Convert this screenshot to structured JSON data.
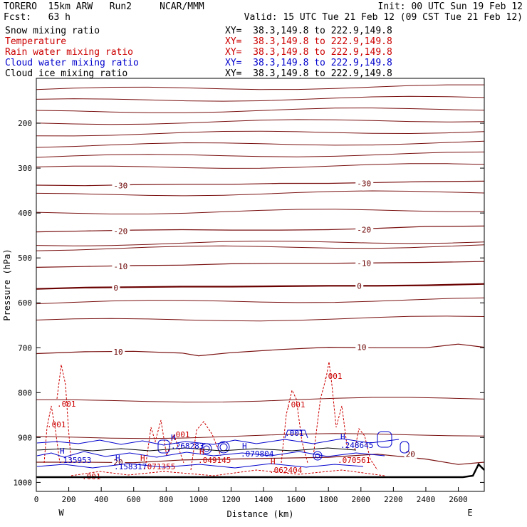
{
  "header": {
    "model": "TORERO  15km ARW   Run2     NCAR/MMM",
    "init": "Init: 00 UTC Sun 19 Feb 12",
    "fcst": "Fcst:   63 h",
    "valid": "Valid: 15 UTC Tue 21 Feb 12 (09 CST Tue 21 Feb 12)"
  },
  "fields": [
    {
      "label": "Snow mixing ratio",
      "xy": "XY=  38.3,149.8 to 222.9,149.8",
      "color": "#000000"
    },
    {
      "label": "Temperature",
      "xy": "XY=  38.3,149.8 to 222.9,149.8",
      "color": "#cc0000"
    },
    {
      "label": "Rain water mixing ratio",
      "xy": "XY=  38.3,149.8 to 222.9,149.8",
      "color": "#cc0000"
    },
    {
      "label": "Cloud water mixing ratio",
      "xy": "XY=  38.3,149.8 to 222.9,149.8",
      "color": "#0000cc"
    },
    {
      "label": "Cloud ice mixing ratio",
      "xy": "XY=  38.3,149.8 to 222.9,149.8",
      "color": "#000000"
    }
  ],
  "chart_data": {
    "type": "contour-cross-section",
    "xlabel": "Distance (km)",
    "ylabel": "Pressure (hPa)",
    "xlim": [
      0,
      2760
    ],
    "ylim": [
      1020,
      100
    ],
    "x_ticks": [
      0,
      200,
      400,
      600,
      800,
      1000,
      1200,
      1400,
      1600,
      1800,
      2000,
      2200,
      2400,
      2600
    ],
    "y_ticks": [
      200,
      300,
      400,
      500,
      600,
      700,
      800,
      900,
      1000
    ],
    "endpoints": {
      "left": "W",
      "right": "E"
    },
    "temperature_isotherms": [
      {
        "label": "-30",
        "points": [
          [
            0,
            338
          ],
          [
            300,
            339
          ],
          [
            600,
            337
          ],
          [
            900,
            336
          ],
          [
            1200,
            336
          ],
          [
            1500,
            334
          ],
          [
            1800,
            334
          ],
          [
            2100,
            332
          ],
          [
            2400,
            330
          ],
          [
            2760,
            329
          ]
        ]
      },
      {
        "label": "-20",
        "points": [
          [
            0,
            442
          ],
          [
            300,
            440
          ],
          [
            600,
            438
          ],
          [
            900,
            437
          ],
          [
            1200,
            438
          ],
          [
            1500,
            438
          ],
          [
            1800,
            437
          ],
          [
            2100,
            434
          ],
          [
            2400,
            430
          ],
          [
            2760,
            429
          ]
        ]
      },
      {
        "label": "-10",
        "points": [
          [
            0,
            521
          ],
          [
            300,
            519
          ],
          [
            600,
            517
          ],
          [
            900,
            516
          ],
          [
            1200,
            513
          ],
          [
            1500,
            512
          ],
          [
            1800,
            512
          ],
          [
            2100,
            511
          ],
          [
            2400,
            510
          ],
          [
            2760,
            508
          ]
        ]
      },
      {
        "label": "0",
        "points": [
          [
            0,
            569
          ],
          [
            300,
            566
          ],
          [
            600,
            565
          ],
          [
            900,
            564
          ],
          [
            1200,
            564
          ],
          [
            1500,
            563
          ],
          [
            1800,
            562
          ],
          [
            2100,
            562
          ],
          [
            2400,
            561
          ],
          [
            2760,
            558
          ]
        ]
      },
      {
        "label": "10",
        "points": [
          [
            0,
            713
          ],
          [
            300,
            709
          ],
          [
            600,
            708
          ],
          [
            900,
            712
          ],
          [
            1000,
            718
          ],
          [
            1200,
            711
          ],
          [
            1500,
            704
          ],
          [
            1800,
            699
          ],
          [
            2100,
            700
          ],
          [
            2400,
            700
          ],
          [
            2600,
            692
          ],
          [
            2760,
            699
          ]
        ]
      },
      {
        "label": "20",
        "points": [
          [
            0,
            955
          ],
          [
            300,
            955
          ],
          [
            600,
            956
          ],
          [
            900,
            950
          ],
          [
            1200,
            948
          ],
          [
            1500,
            946
          ],
          [
            1800,
            944
          ],
          [
            2100,
            937
          ],
          [
            2400,
            948
          ],
          [
            2600,
            960
          ],
          [
            2760,
            955
          ]
        ]
      }
    ],
    "rain_labels": [
      ".001",
      ".001",
      ".001",
      ".001",
      ".001",
      ".001",
      ".001"
    ],
    "cloud_water_labels": [
      ".135953",
      ".158317",
      ".268283",
      ".079804",
      ".248645"
    ],
    "rain_maxima_labels": [
      ".071355",
      ".049145",
      ".062404",
      ".070561"
    ],
    "extrema_marks": [
      "H",
      "H",
      "H",
      "H",
      "H",
      "H",
      "H",
      "H"
    ]
  }
}
